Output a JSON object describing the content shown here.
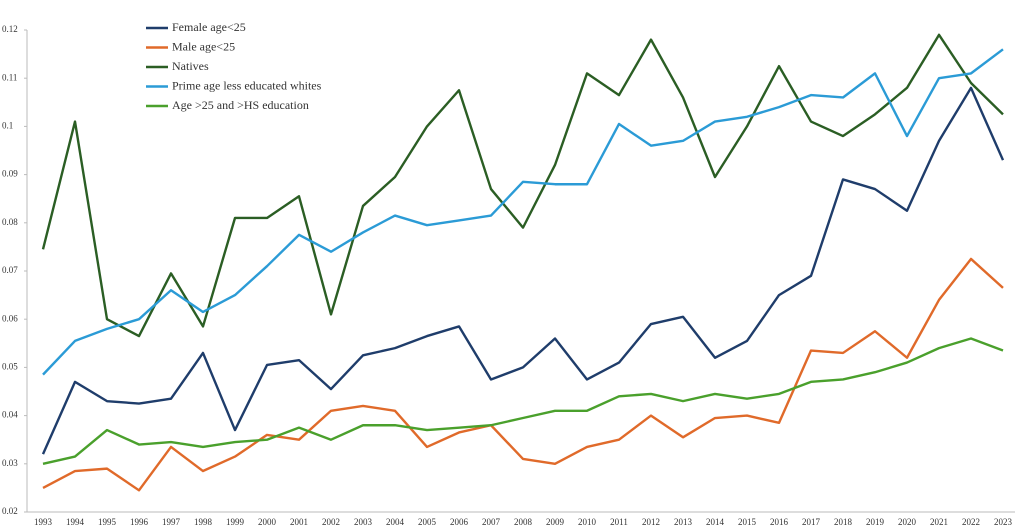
{
  "chart_data": {
    "type": "line",
    "categories": [
      "1993",
      "1994",
      "1995",
      "1996",
      "1997",
      "1998",
      "1999",
      "2000",
      "2001",
      "2002",
      "2003",
      "2004",
      "2005",
      "2006",
      "2007",
      "2008",
      "2009",
      "2010",
      "2011",
      "2012",
      "2013",
      "2014",
      "2015",
      "2016",
      "2017",
      "2018",
      "2019",
      "2020",
      "2021",
      "2022",
      "2023"
    ],
    "ylim": [
      0.02,
      0.12
    ],
    "yticks": [
      0.02,
      0.03,
      0.04,
      0.05,
      0.06,
      0.07,
      0.08,
      0.09,
      0.1,
      0.11,
      0.12
    ],
    "grid": false,
    "legend": "top-left",
    "series": [
      {
        "name": "Female age<25",
        "color": "#1f3d6b",
        "values": [
          0.032,
          0.047,
          0.043,
          0.0425,
          0.0435,
          0.053,
          0.037,
          0.0505,
          0.0515,
          0.0455,
          0.0525,
          0.054,
          0.0565,
          0.0585,
          0.0475,
          0.05,
          0.056,
          0.0475,
          0.051,
          0.059,
          0.0605,
          0.052,
          0.0555,
          0.065,
          0.069,
          0.089,
          0.087,
          0.0825,
          0.097,
          0.108,
          0.093
        ]
      },
      {
        "name": "Male age<25",
        "color": "#e06a2a",
        "values": [
          0.025,
          0.0285,
          0.029,
          0.0245,
          0.0335,
          0.0285,
          0.0315,
          0.036,
          0.035,
          0.041,
          0.042,
          0.041,
          0.0335,
          0.0365,
          0.038,
          0.031,
          0.03,
          0.0335,
          0.035,
          0.04,
          0.0355,
          0.0395,
          0.04,
          0.0385,
          0.0535,
          0.053,
          0.0575,
          0.052,
          0.064,
          0.0725,
          0.0665
        ]
      },
      {
        "name": "Natives",
        "color": "#2b5e24",
        "values": [
          0.0745,
          0.101,
          0.06,
          0.0565,
          0.0695,
          0.0585,
          0.081,
          0.081,
          0.0855,
          0.061,
          0.0835,
          0.0895,
          0.1,
          0.1075,
          0.087,
          0.079,
          0.092,
          0.111,
          0.1065,
          0.118,
          0.106,
          0.0895,
          0.1,
          0.1125,
          0.101,
          0.098,
          0.1025,
          0.108,
          0.119,
          0.109,
          0.1025
        ]
      },
      {
        "name": "Prime age less educated whites",
        "color": "#2b9bd6",
        "values": [
          0.0485,
          0.0555,
          0.058,
          0.06,
          0.066,
          0.0615,
          0.065,
          0.071,
          0.0775,
          0.074,
          0.078,
          0.0815,
          0.0795,
          0.0805,
          0.0815,
          0.0885,
          0.088,
          0.088,
          0.1005,
          0.096,
          0.097,
          0.101,
          0.102,
          0.104,
          0.1065,
          0.106,
          0.111,
          0.098,
          0.11,
          0.111,
          0.116
        ]
      },
      {
        "name": "Age >25 and >HS education",
        "color": "#4aa02c",
        "values": [
          0.03,
          0.0315,
          0.037,
          0.034,
          0.0345,
          0.0335,
          0.0345,
          0.035,
          0.0375,
          0.035,
          0.038,
          0.038,
          0.037,
          0.0375,
          0.038,
          0.0395,
          0.041,
          0.041,
          0.044,
          0.0445,
          0.043,
          0.0445,
          0.0435,
          0.0445,
          0.047,
          0.0475,
          0.049,
          0.051,
          0.054,
          0.056,
          0.0535
        ]
      }
    ]
  }
}
